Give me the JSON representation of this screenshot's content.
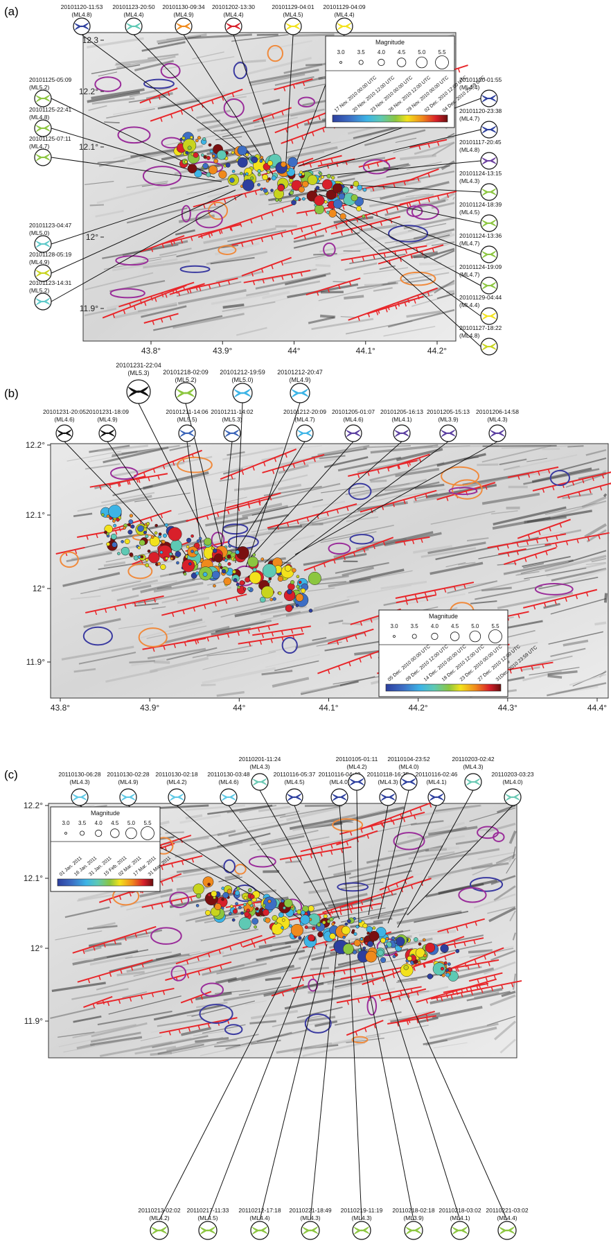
{
  "panels": [
    {
      "label": "(a)",
      "x_ticks": [
        "43.8°",
        "43.9°",
        "44°",
        "44.1°",
        "44.2°"
      ],
      "y_ticks": [
        "12.3",
        "12.2°",
        "12.1°",
        "12°",
        "11.9°"
      ],
      "magnitude_legend": {
        "title": "Magnitude",
        "values": [
          "3.0",
          "3.5",
          "4.0",
          "4.5",
          "5.0",
          "5.5"
        ]
      },
      "time_legend": {
        "dates": [
          "17 Nov. 2010 00:00 UTC",
          "20 Nov. 2010 12:00 UTC",
          "23 Nov. 2010 00:00 UTC",
          "26 Nov. 2010 12:00 UTC",
          "29 Nov. 2010 00:00 UTC",
          "02 Dec. 2010 12:00 UTC",
          "04 Dec. 2010 23:59 UTC"
        ]
      },
      "mechanisms": [
        {
          "id": "20101120-11:53",
          "mag": "(ML4.8)",
          "color": "#2d3f9e"
        },
        {
          "id": "20101123-20:50",
          "mag": "(ML4.4)",
          "color": "#5ec9b4"
        },
        {
          "id": "20101130-09:34",
          "mag": "(ML4.9)",
          "color": "#f08a1c"
        },
        {
          "id": "20101202-13:30",
          "mag": "(ML4.4)",
          "color": "#d8202a"
        },
        {
          "id": "20101129-04:01",
          "mag": "(ML4.5)",
          "color": "#f3e21c"
        },
        {
          "id": "20101129-04:09",
          "mag": "(ML4.4)",
          "color": "#f3e21c"
        },
        {
          "id": "20101125-05:09",
          "mag": "(ML5.2)",
          "color": "#8cc63f"
        },
        {
          "id": "20101125-22:41",
          "mag": "(ML4.8)",
          "color": "#8cc63f"
        },
        {
          "id": "20101125-07:11",
          "mag": "(ML4.7)",
          "color": "#8cc63f"
        },
        {
          "id": "20101123-04:47",
          "mag": "(ML5.0)",
          "color": "#5ec9c9"
        },
        {
          "id": "20101128-05:19",
          "mag": "(ML4.9)",
          "color": "#c8d41e"
        },
        {
          "id": "20101123-14:31",
          "mag": "(ML5.2)",
          "color": "#5ec9c9"
        },
        {
          "id": "20101120-01:55",
          "mag": "(ML4.4)",
          "color": "#2d3f9e"
        },
        {
          "id": "20101120-23:38",
          "mag": "(ML4.7)",
          "color": "#2d3f9e"
        },
        {
          "id": "20101117-20:45",
          "mag": "(ML4.8)",
          "color": "#6c3fa0"
        },
        {
          "id": "20101124-13:15",
          "mag": "(ML4.3)",
          "color": "#8cc63f"
        },
        {
          "id": "20101124-18:39",
          "mag": "(ML4.5)",
          "color": "#8cc63f"
        },
        {
          "id": "20101124-13:36",
          "mag": "(ML4.7)",
          "color": "#8cc63f"
        },
        {
          "id": "20101124-19:09",
          "mag": "(ML4.7)",
          "color": "#8cc63f"
        },
        {
          "id": "20101129-04:44",
          "mag": "(ML4.4)",
          "color": "#f3e21c"
        },
        {
          "id": "20101127-18:22",
          "mag": "(ML4.8)",
          "color": "#c8d41e"
        }
      ]
    },
    {
      "label": "(b)",
      "x_ticks": [
        "43.8°",
        "43.9°",
        "44°",
        "44.1°",
        "44.2°",
        "44.3°",
        "44.4°"
      ],
      "y_ticks": [
        "12.2°",
        "12.1°",
        "12°",
        "11.9°"
      ],
      "magnitude_legend": {
        "title": "Magnitude",
        "values": [
          "3.0",
          "3.5",
          "4.0",
          "4.5",
          "5.0",
          "5.5"
        ]
      },
      "time_legend": {
        "dates": [
          "05 Dec. 2010 00:00 UTC",
          "09 Dec. 2010 12:00 UTC",
          "14 Dec. 2010 00:00 UTC",
          "18 Dec. 2010 12:00 UTC",
          "23 Dec. 2010 00:00 UTC",
          "27 Dec. 2010 12:00 UTC",
          "31Dec. 2010 23:59 UTC"
        ]
      },
      "mechanisms": [
        {
          "id": "20101231-22:04",
          "mag": "(ML5.3)",
          "color": "#111111"
        },
        {
          "id": "20101218-02:09",
          "mag": "(ML5.2)",
          "color": "#8cc63f"
        },
        {
          "id": "20101212-19:59",
          "mag": "(ML5.0)",
          "color": "#3db4e6"
        },
        {
          "id": "20101212-20:47",
          "mag": "(ML4.9)",
          "color": "#3db4e6"
        },
        {
          "id": "20101231-20:05",
          "mag": "(ML4.6)",
          "color": "#111111"
        },
        {
          "id": "20101231-18:09",
          "mag": "(ML4.9)",
          "color": "#111111"
        },
        {
          "id": "20101211-14:06",
          "mag": "(ML5.5)",
          "color": "#3a64b8"
        },
        {
          "id": "20101211-14:02",
          "mag": "(ML5.3)",
          "color": "#3a64b8"
        },
        {
          "id": "20101212-20:09",
          "mag": "(ML4.7)",
          "color": "#3db4e6"
        },
        {
          "id": "20101205-01:07",
          "mag": "(ML4.6)",
          "color": "#5a3ea0"
        },
        {
          "id": "20101205-16:13",
          "mag": "(ML4.1)",
          "color": "#5a3ea0"
        },
        {
          "id": "20101205-15:13",
          "mag": "(ML3.9)",
          "color": "#5a3ea0"
        },
        {
          "id": "20101206-14:58",
          "mag": "(ML4.3)",
          "color": "#5a3ea0"
        }
      ]
    },
    {
      "label": "(c)",
      "x_ticks": [],
      "y_ticks": [
        "12.2°",
        "12.1°",
        "12°",
        "11.9°"
      ],
      "magnitude_legend": {
        "title": "Magnitude",
        "values": [
          "3.0",
          "3.5",
          "4.0",
          "4.5",
          "5.0",
          "5.5"
        ]
      },
      "time_legend": {
        "dates": [
          "01 Jan. 2011",
          "16 Jan. 2011",
          "31 Jan. 2011",
          "15 Feb. 2011",
          "02 Mar. 2011",
          "17 Mar. 2011",
          "31 Mar. 2011"
        ]
      },
      "mechanisms_top": [
        {
          "id": "20110130-06:28",
          "mag": "(ML4.3)",
          "color": "#5ec9e6"
        },
        {
          "id": "20110130-02:28",
          "mag": "(ML4.9)",
          "color": "#5ec9e6"
        },
        {
          "id": "20110130-02:18",
          "mag": "(ML4.2)",
          "color": "#5ec9e6"
        },
        {
          "id": "20110130-03:48",
          "mag": "(ML4.6)",
          "color": "#5ec9e6"
        },
        {
          "id": "20110201-11:24",
          "mag": "(ML4.3)",
          "color": "#6ac9b4"
        },
        {
          "id": "20110116-05:37",
          "mag": "(ML4.5)",
          "color": "#2d3f9e"
        },
        {
          "id": "20110116-04:42",
          "mag": "(ML4.0)",
          "color": "#2d3f9e"
        },
        {
          "id": "20110105-01:11",
          "mag": "(ML4.2)",
          "color": "#2d3f9e"
        },
        {
          "id": "20110118-16:35",
          "mag": "(ML4.3)",
          "color": "#2d3f9e"
        },
        {
          "id": "20110104-23:52",
          "mag": "(ML4.0)",
          "color": "#2d3f9e"
        },
        {
          "id": "20110116-02:46",
          "mag": "(ML4.1)",
          "color": "#2d3f9e"
        },
        {
          "id": "20110203-02:42",
          "mag": "(ML4.3)",
          "color": "#6ac9b4"
        },
        {
          "id": "20110203-03:23",
          "mag": "(ML4.0)",
          "color": "#6ac9b4"
        }
      ],
      "mechanisms_bottom": [
        {
          "id": "20110213-02:02",
          "mag": "(ML4.2)",
          "color": "#8cc63f"
        },
        {
          "id": "20110217-11:33",
          "mag": "(ML4.5)",
          "color": "#8cc63f"
        },
        {
          "id": "20110212-17:18",
          "mag": "(ML4.4)",
          "color": "#8cc63f"
        },
        {
          "id": "20110221-18:49",
          "mag": "(ML4.3)",
          "color": "#8cc63f"
        },
        {
          "id": "20110219-11:19",
          "mag": "(ML4.3)",
          "color": "#8cc63f"
        },
        {
          "id": "20110218-02:18",
          "mag": "(ML3.9)",
          "color": "#8cc63f"
        },
        {
          "id": "20110218-03:02",
          "mag": "(ML4.1)",
          "color": "#8cc63f"
        },
        {
          "id": "20110221-03:02",
          "mag": "(ML4.4)",
          "color": "#8cc63f"
        }
      ]
    }
  ],
  "colors": {
    "fault": "#e8262a",
    "contour_purple": "#9a2d9a",
    "contour_blue": "#3a3aa0",
    "contour_orange": "#f08a3c",
    "colorbar": [
      "#2d3f9e",
      "#3d6ec4",
      "#3db4e6",
      "#5ec9b4",
      "#8cc63f",
      "#c8d41e",
      "#f3e21c",
      "#f08a1c",
      "#d8202a",
      "#7a1010"
    ]
  }
}
